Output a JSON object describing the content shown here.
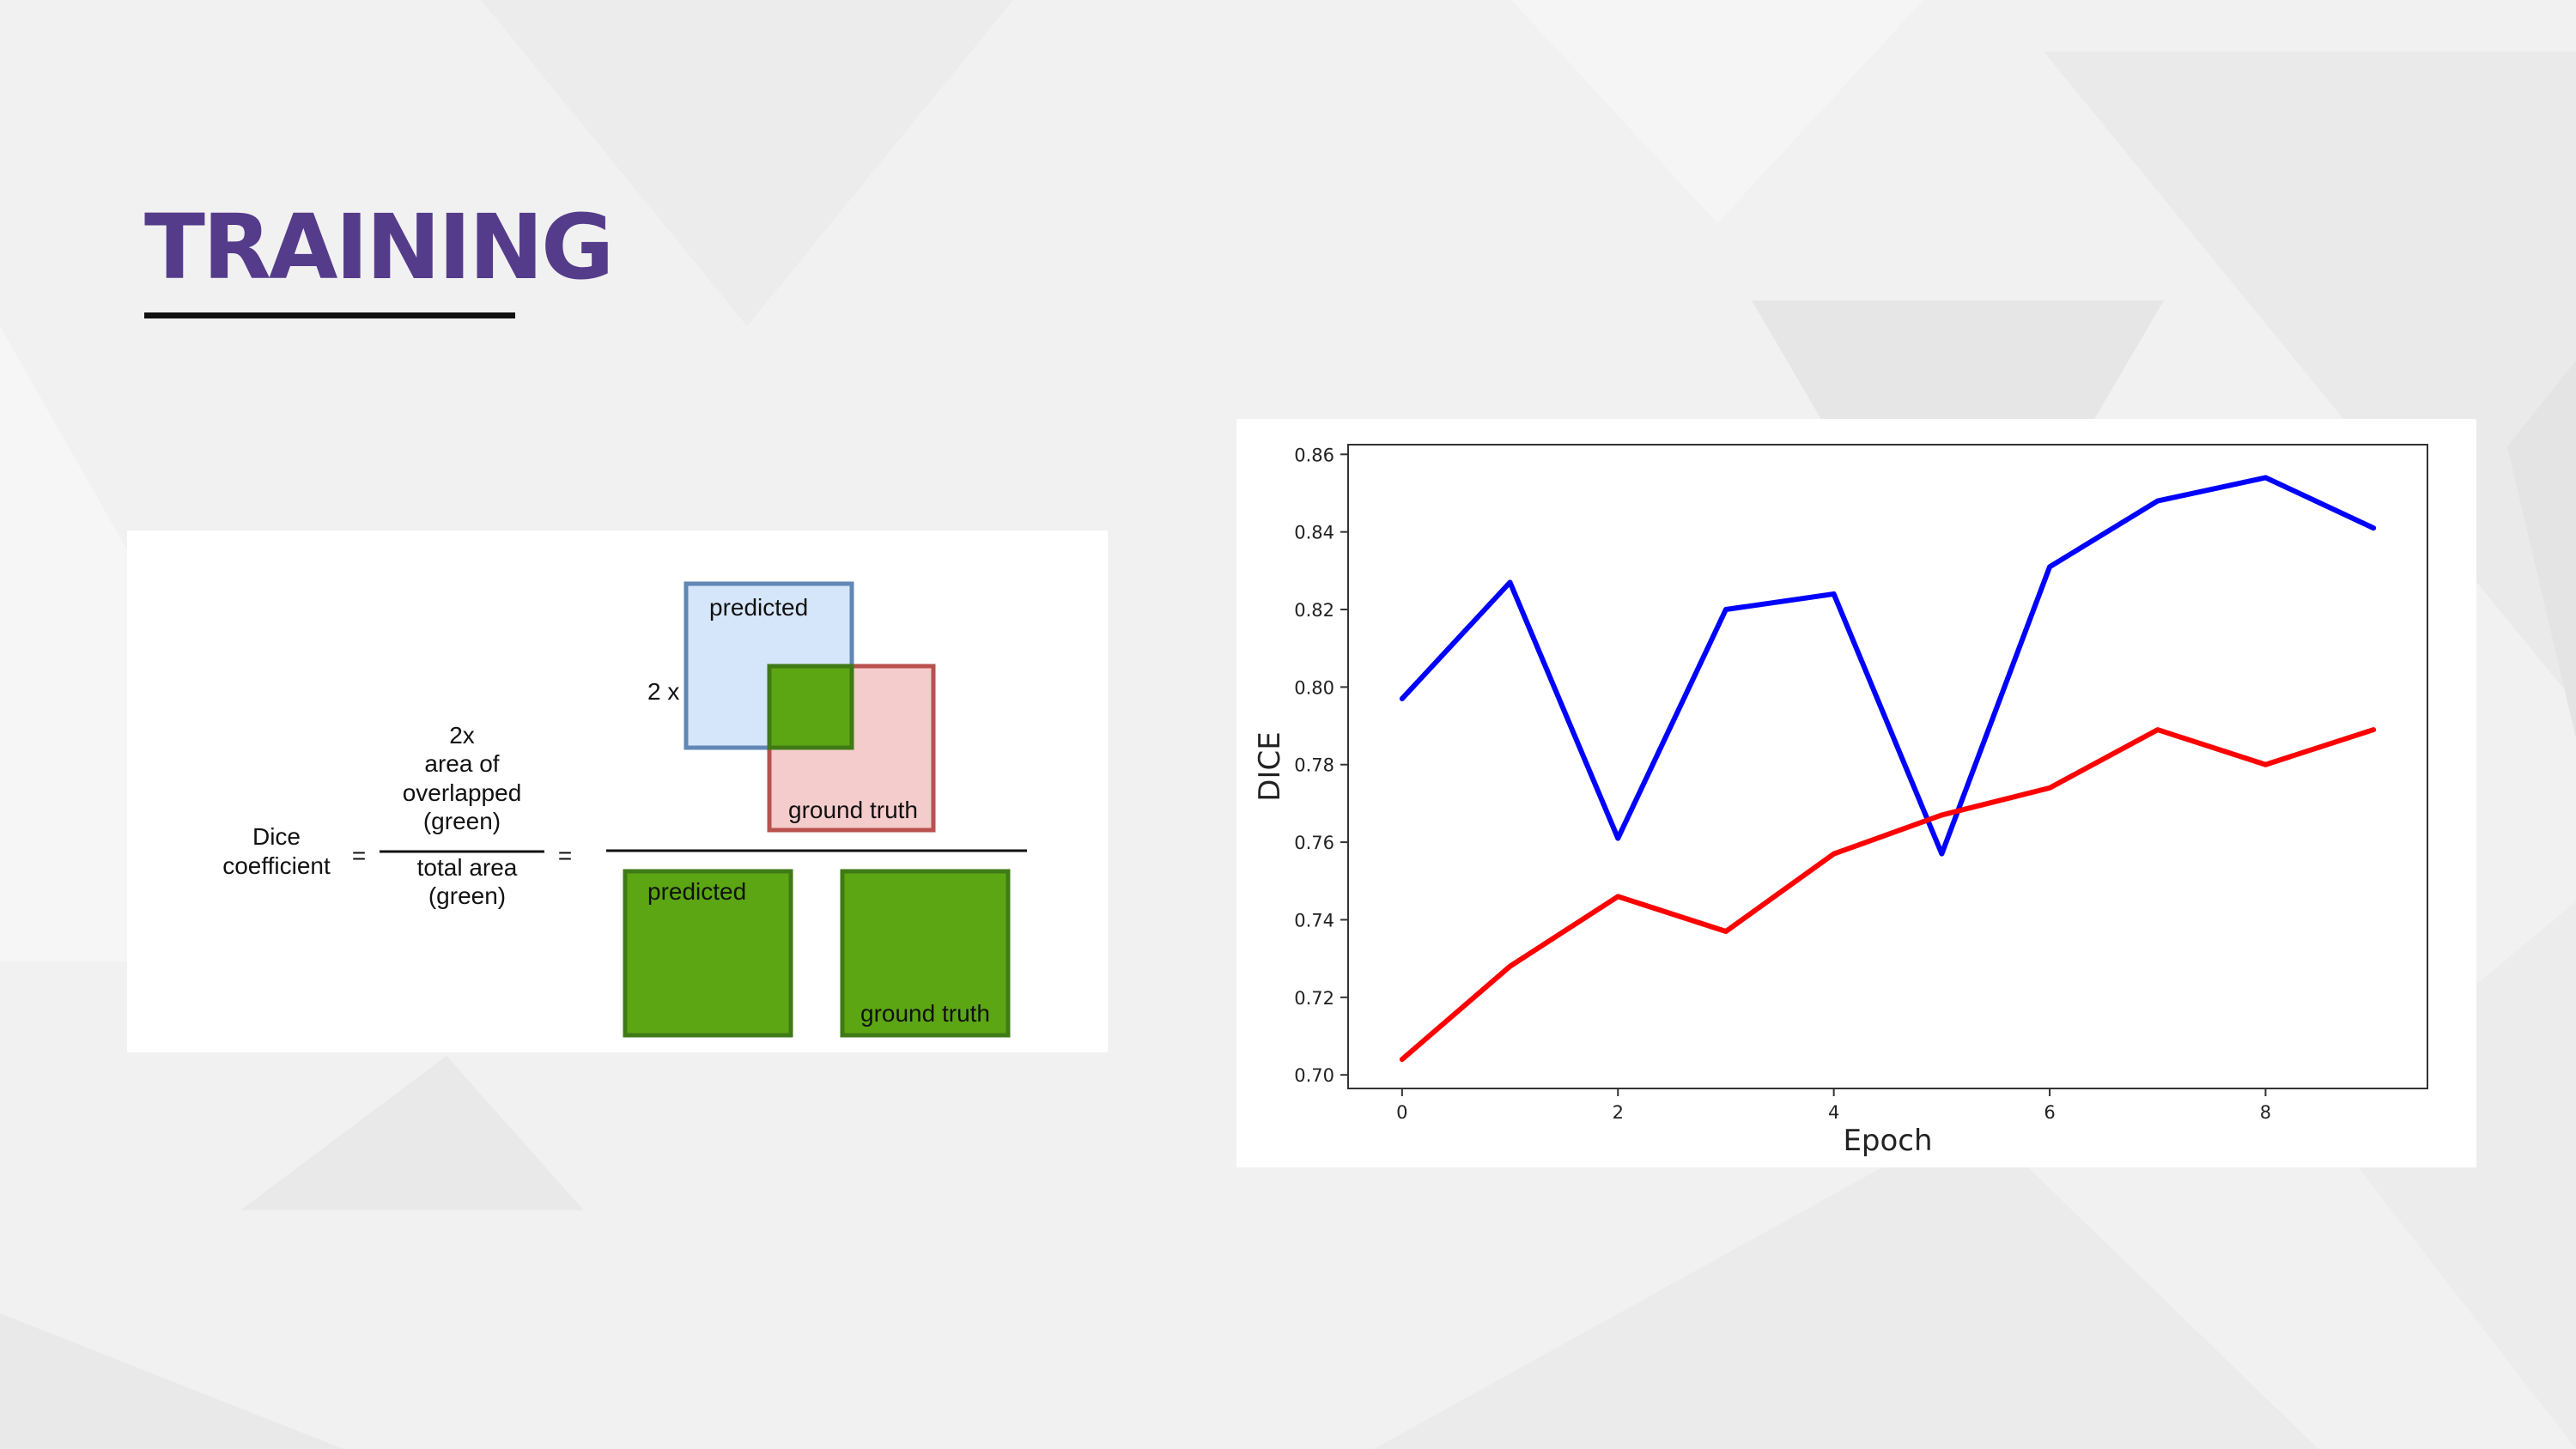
{
  "slide": {
    "title": "TRAINING",
    "colors": {
      "title": "#553c8b",
      "underline": "#111111",
      "background": "#f1f1f1"
    }
  },
  "dice_diagram": {
    "dice_label": [
      "Dice",
      "coefficient"
    ],
    "equals": "=",
    "numerator_text": [
      "2x",
      "area of",
      "overlapped",
      "(green)"
    ],
    "denominator_text": [
      "total area",
      "(green)"
    ],
    "multiplier": "2 x",
    "predicted_label": "predicted",
    "ground_truth_label": "ground truth",
    "colors": {
      "predicted_fill": "#d6e6fa",
      "predicted_stroke": "#6287b6",
      "ground_truth_fill": "#f5cccc",
      "ground_truth_stroke": "#b9514f",
      "overlap_fill": "#5ca614",
      "overlap_stroke": "#3f7a16"
    }
  },
  "chart_data": {
    "type": "line",
    "title": "",
    "xlabel": "Epoch",
    "ylabel": "DICE",
    "x": [
      0,
      1,
      2,
      3,
      4,
      5,
      6,
      7,
      8,
      9
    ],
    "xlim": [
      -0.5,
      9.5
    ],
    "ylim": [
      0.6965,
      0.8625
    ],
    "x_ticks": [
      0,
      2,
      4,
      6,
      8
    ],
    "y_ticks": [
      0.7,
      0.72,
      0.74,
      0.76,
      0.78,
      0.8,
      0.82,
      0.84,
      0.86
    ],
    "y_tick_labels": [
      "0.70",
      "0.72",
      "0.74",
      "0.76",
      "0.78",
      "0.80",
      "0.82",
      "0.84",
      "0.86"
    ],
    "grid": false,
    "series": [
      {
        "color": "#0000ff",
        "values": [
          0.797,
          0.827,
          0.761,
          0.82,
          0.824,
          0.757,
          0.831,
          0.848,
          0.854,
          0.841
        ]
      },
      {
        "color": "#ff0000",
        "values": [
          0.704,
          0.728,
          0.746,
          0.737,
          0.757,
          0.767,
          0.774,
          0.789,
          0.78,
          0.789
        ]
      }
    ]
  }
}
